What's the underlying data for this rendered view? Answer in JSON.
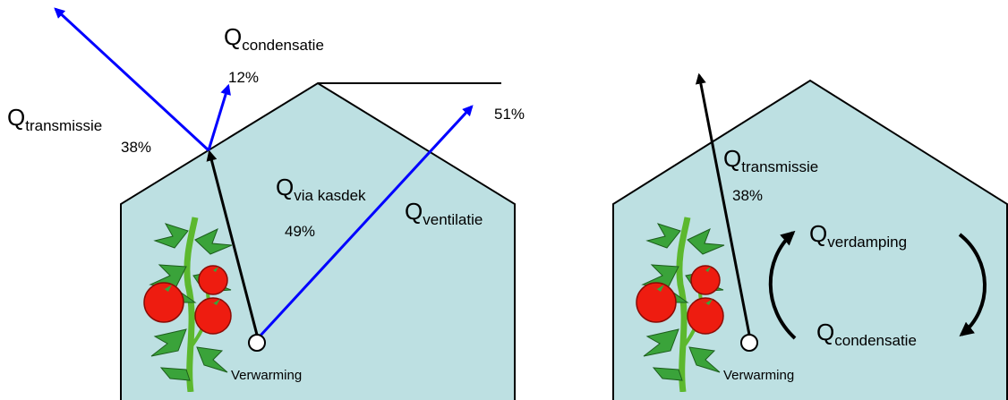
{
  "left": {
    "condensatie": {
      "symbol": "Q",
      "sub": "condensatie",
      "share": "12%"
    },
    "transmissie": {
      "symbol": "Q",
      "sub": "transmissie",
      "share": "38%"
    },
    "ventilatie": {
      "symbol": "Q",
      "sub": "ventilatie",
      "share": "51%"
    },
    "kasdek": {
      "symbol": "Q",
      "sub": "via kasdek",
      "share": "49%"
    },
    "heater": "Verwarming"
  },
  "right": {
    "transmissie": {
      "symbol": "Q",
      "sub": "transmissie",
      "share": "38%"
    },
    "verdamping": {
      "symbol": "Q",
      "sub": "verdamping"
    },
    "condensatie": {
      "symbol": "Q",
      "sub": "condensatie"
    },
    "heater": "Verwarming"
  }
}
